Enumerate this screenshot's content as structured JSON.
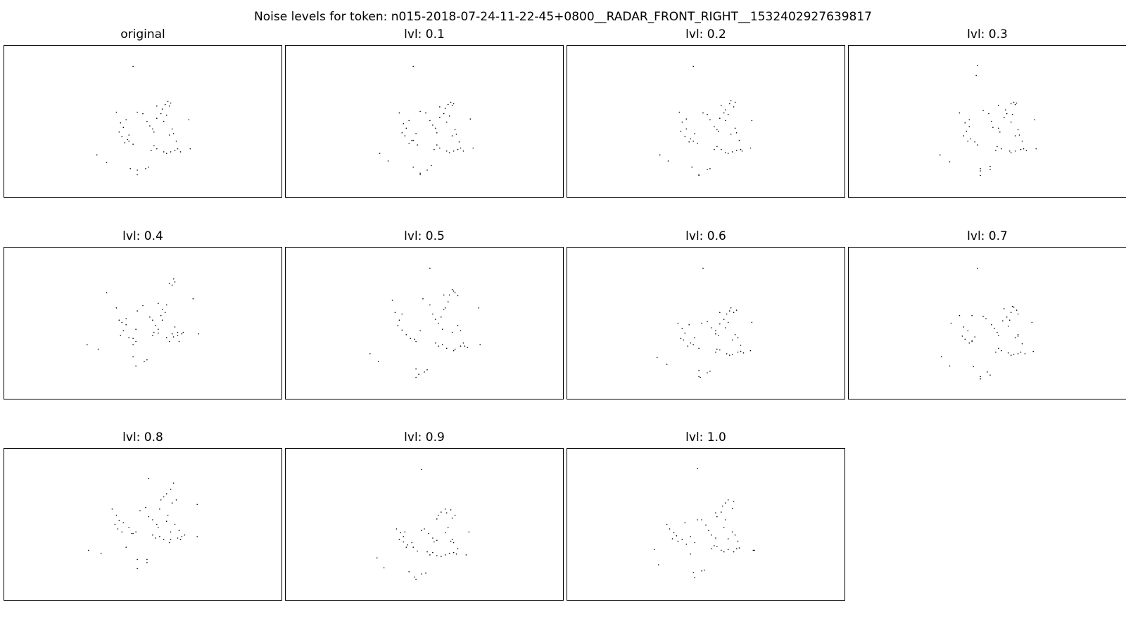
{
  "figure": {
    "title": "Noise levels for token: n015-2018-07-24-11-22-45+0800__RADAR_FRONT_RIGHT__1532402927639817",
    "point_color": "#000000",
    "background": "#ffffff"
  },
  "chart_data": [
    {
      "type": "scatter",
      "title": "original",
      "xlim": [
        0,
        100
      ],
      "ylim": [
        0,
        100
      ],
      "grid": false,
      "ticks": false,
      "x": [
        46.5,
        40.5,
        42.0,
        43.0,
        41.5,
        44.5,
        42.5,
        43.5,
        45.0,
        46.5,
        48.0,
        50.0,
        51.5,
        52.5,
        53.5,
        54.0,
        55.0,
        56.5,
        57.0,
        58.0,
        59.0,
        59.5,
        60.0,
        58.5,
        57.5,
        60.5,
        59.5,
        61.0,
        62.0,
        66.5,
        54.0,
        53.0,
        55.0,
        57.5,
        58.5,
        60.0,
        61.5,
        62.5,
        63.5,
        67.0,
        33.5,
        37.0,
        45.5,
        48.0,
        52.0,
        51.0,
        48.0,
        55.0,
        44.0,
        45.0
      ],
      "y": [
        86.0,
        56.0,
        49.0,
        46.0,
        43.0,
        38.0,
        40.0,
        36.0,
        37.0,
        35.0,
        56.0,
        55.0,
        50.0,
        47.0,
        45.0,
        43.0,
        52.0,
        55.0,
        58.0,
        61.0,
        63.0,
        60.0,
        62.0,
        54.0,
        50.0,
        45.0,
        41.0,
        42.0,
        37.0,
        51.0,
        34.0,
        31.0,
        32.0,
        30.0,
        29.0,
        30.0,
        31.0,
        32.0,
        30.0,
        32.0,
        28.0,
        23.0,
        19.0,
        18.0,
        20.0,
        19.0,
        15.0,
        60.0,
        51.0,
        41.0
      ]
    },
    {
      "type": "scatter",
      "title": "lvl: 0.1",
      "xlim": [
        0,
        100
      ],
      "ylim": [
        0,
        100
      ],
      "grid": false,
      "ticks": false,
      "x": [
        46.0,
        41.0,
        42.5,
        43.5,
        42.0,
        45.5,
        43.0,
        44.5,
        46.0,
        47.5,
        48.5,
        50.5,
        52.0,
        53.0,
        54.0,
        54.5,
        55.5,
        57.0,
        57.5,
        58.5,
        59.5,
        60.0,
        60.5,
        59.0,
        58.0,
        61.0,
        60.0,
        61.5,
        62.5,
        66.5,
        54.5,
        53.5,
        55.5,
        58.0,
        59.0,
        60.5,
        62.0,
        63.0,
        64.0,
        67.5,
        34.0,
        37.0,
        46.0,
        48.5,
        52.5,
        51.0,
        48.5,
        55.5,
        44.5,
        47.0
      ],
      "y": [
        86.0,
        55.5,
        48.5,
        45.5,
        42.5,
        37.5,
        40.5,
        35.5,
        37.5,
        34.5,
        56.5,
        55.5,
        50.5,
        47.5,
        45.5,
        42.5,
        52.5,
        55.0,
        58.5,
        61.0,
        62.5,
        60.5,
        61.5,
        53.5,
        49.5,
        44.5,
        40.5,
        41.5,
        36.5,
        51.5,
        34.5,
        31.5,
        32.5,
        30.5,
        29.5,
        30.5,
        31.5,
        32.5,
        30.5,
        32.5,
        29.0,
        24.0,
        20.0,
        16.0,
        21.0,
        18.0,
        15.0,
        59.5,
        50.5,
        42.0
      ]
    },
    {
      "type": "scatter",
      "title": "lvl: 0.2",
      "xlim": [
        0,
        100
      ],
      "ylim": [
        0,
        100
      ],
      "grid": false,
      "ticks": false,
      "x": [
        45.5,
        40.5,
        41.5,
        43.0,
        41.0,
        44.5,
        42.5,
        44.0,
        45.5,
        47.0,
        49.0,
        50.5,
        51.5,
        53.0,
        54.0,
        54.5,
        55.0,
        56.5,
        57.0,
        58.5,
        59.0,
        60.0,
        60.5,
        58.0,
        57.0,
        60.5,
        59.0,
        61.0,
        62.0,
        66.5,
        54.0,
        53.0,
        55.5,
        57.0,
        58.0,
        59.5,
        61.0,
        62.5,
        63.0,
        66.0,
        33.5,
        36.5,
        45.0,
        47.5,
        51.5,
        50.5,
        47.5,
        55.5,
        43.0,
        46.0
      ],
      "y": [
        86.0,
        56.0,
        49.5,
        45.0,
        43.5,
        38.5,
        40.0,
        36.5,
        37.0,
        35.5,
        55.5,
        54.5,
        51.0,
        46.5,
        44.5,
        43.5,
        52.0,
        55.5,
        57.5,
        61.5,
        63.5,
        59.5,
        62.5,
        54.5,
        50.5,
        45.5,
        41.5,
        42.5,
        37.5,
        50.5,
        33.5,
        31.5,
        31.5,
        29.5,
        29.0,
        30.0,
        31.0,
        31.5,
        30.5,
        32.5,
        28.0,
        24.0,
        20.0,
        15.0,
        19.0,
        18.5,
        14.5,
        60.5,
        51.5,
        42.0
      ]
    },
    {
      "type": "scatter",
      "title": "lvl: 0.3",
      "xlim": [
        0,
        100
      ],
      "ylim": [
        0,
        100
      ],
      "grid": false,
      "ticks": false,
      "x": [
        46.5,
        40.0,
        42.0,
        43.5,
        42.5,
        44.0,
        41.5,
        43.0,
        45.5,
        46.5,
        48.5,
        50.5,
        51.5,
        52.0,
        54.0,
        54.5,
        56.0,
        57.0,
        56.5,
        58.5,
        59.5,
        60.0,
        60.5,
        59.0,
        58.5,
        61.0,
        60.0,
        61.5,
        62.5,
        67.0,
        53.5,
        53.0,
        55.0,
        58.0,
        58.5,
        60.0,
        62.0,
        63.0,
        64.0,
        67.5,
        33.0,
        36.5,
        47.5,
        47.5,
        51.0,
        51.0,
        47.5,
        54.0,
        43.5,
        46.0
      ],
      "y": [
        86.5,
        55.5,
        49.0,
        46.5,
        43.5,
        38.5,
        40.5,
        37.0,
        36.5,
        34.5,
        57.0,
        55.0,
        50.0,
        46.0,
        45.5,
        43.0,
        52.5,
        55.0,
        57.5,
        61.5,
        62.5,
        61.0,
        62.0,
        54.5,
        49.5,
        44.5,
        40.5,
        41.0,
        37.0,
        51.0,
        33.5,
        31.0,
        32.0,
        30.5,
        29.5,
        30.5,
        31.5,
        32.0,
        31.0,
        32.0,
        28.0,
        23.5,
        19.0,
        17.5,
        20.5,
        18.5,
        14.5,
        60.5,
        51.0,
        80.0
      ]
    },
    {
      "type": "scatter",
      "title": "lvl: 0.4",
      "xlim": [
        0,
        100
      ],
      "ylim": [
        0,
        100
      ],
      "grid": false,
      "ticks": false,
      "x": [
        37.0,
        40.5,
        41.5,
        42.5,
        43.0,
        45.0,
        42.0,
        44.0,
        46.5,
        47.5,
        48.0,
        50.0,
        52.5,
        53.5,
        54.5,
        55.5,
        56.5,
        57.0,
        58.5,
        59.5,
        60.5,
        61.0,
        61.5,
        58.0,
        57.0,
        61.5,
        60.5,
        62.5,
        63.0,
        68.0,
        54.0,
        53.5,
        55.5,
        58.5,
        59.5,
        61.0,
        62.5,
        64.0,
        64.5,
        70.0,
        30.0,
        34.0,
        46.5,
        46.5,
        50.5,
        51.5,
        47.5,
        55.5,
        44.0,
        47.5
      ],
      "y": [
        70.0,
        60.0,
        52.0,
        50.5,
        45.0,
        40.5,
        42.0,
        49.0,
        40.0,
        38.0,
        58.0,
        61.5,
        54.0,
        52.0,
        48.5,
        46.0,
        55.0,
        59.0,
        62.0,
        76.0,
        75.0,
        79.0,
        77.0,
        57.0,
        52.0,
        47.5,
        43.0,
        44.0,
        38.0,
        66.0,
        44.0,
        42.0,
        43.5,
        40.5,
        38.0,
        41.0,
        42.0,
        43.0,
        44.0,
        43.0,
        36.0,
        33.0,
        36.0,
        28.0,
        25.0,
        26.0,
        22.0,
        63.0,
        53.0,
        46.0
      ]
    },
    {
      "type": "scatter",
      "title": "lvl: 0.5",
      "xlim": [
        0,
        100
      ],
      "ylim": [
        0,
        100
      ],
      "grid": false,
      "ticks": false,
      "x": [
        52.0,
        38.5,
        39.5,
        41.0,
        40.5,
        43.5,
        42.0,
        45.0,
        46.5,
        47.0,
        49.5,
        52.0,
        53.0,
        54.0,
        55.0,
        56.5,
        57.0,
        58.5,
        59.0,
        60.0,
        60.5,
        62.0,
        61.0,
        57.5,
        56.0,
        62.0,
        60.0,
        63.0,
        64.0,
        69.5,
        54.0,
        55.0,
        56.5,
        58.0,
        60.5,
        61.0,
        63.0,
        64.5,
        65.5,
        70.0,
        30.5,
        33.5,
        47.0,
        48.0,
        51.0,
        50.0,
        47.0,
        57.0,
        42.0,
        48.5
      ],
      "y": [
        86.0,
        65.0,
        57.0,
        52.0,
        48.5,
        42.5,
        45.5,
        40.0,
        39.5,
        38.0,
        66.0,
        62.0,
        56.0,
        52.5,
        50.0,
        46.0,
        59.0,
        64.0,
        68.5,
        72.0,
        71.0,
        68.0,
        70.0,
        60.0,
        54.0,
        48.5,
        44.0,
        45.0,
        37.0,
        60.0,
        37.0,
        35.0,
        36.0,
        33.5,
        32.0,
        33.0,
        35.0,
        35.0,
        34.0,
        36.0,
        30.0,
        25.0,
        20.0,
        16.5,
        19.5,
        18.0,
        14.5,
        68.5,
        56.0,
        45.0
      ]
    },
    {
      "type": "scatter",
      "title": "lvl: 0.6",
      "xlim": [
        0,
        100
      ],
      "ylim": [
        0,
        100
      ],
      "grid": false,
      "ticks": false,
      "x": [
        49.0,
        40.0,
        41.5,
        42.5,
        41.0,
        44.5,
        42.0,
        43.5,
        45.5,
        47.5,
        48.5,
        50.5,
        52.0,
        53.5,
        53.5,
        54.5,
        55.0,
        56.5,
        57.5,
        58.5,
        59.0,
        60.0,
        61.0,
        58.0,
        57.0,
        60.5,
        59.5,
        61.5,
        62.5,
        66.5,
        54.0,
        53.5,
        55.0,
        57.5,
        58.5,
        59.5,
        61.5,
        62.5,
        63.5,
        66.0,
        32.5,
        36.0,
        47.5,
        48.0,
        51.5,
        50.5,
        47.5,
        55.0,
        44.0,
        46.0
      ],
      "y": [
        86.0,
        50.0,
        46.5,
        43.5,
        40.0,
        37.0,
        39.0,
        35.0,
        36.0,
        33.5,
        50.0,
        51.0,
        47.0,
        45.0,
        43.0,
        42.0,
        49.5,
        52.5,
        56.0,
        58.0,
        60.0,
        57.0,
        58.5,
        50.5,
        47.0,
        42.5,
        39.0,
        40.5,
        35.5,
        50.5,
        33.0,
        31.0,
        32.5,
        30.0,
        29.0,
        29.5,
        31.0,
        31.5,
        30.5,
        32.0,
        27.5,
        23.0,
        19.0,
        14.5,
        18.5,
        17.5,
        15.0,
        57.0,
        49.0,
        40.5
      ]
    },
    {
      "type": "scatter",
      "title": "lvl: 0.7",
      "xlim": [
        0,
        100
      ],
      "ylim": [
        0,
        100
      ],
      "grid": false,
      "ticks": false,
      "x": [
        46.5,
        40.0,
        41.5,
        43.0,
        41.0,
        44.5,
        42.0,
        43.5,
        44.5,
        45.5,
        48.5,
        49.5,
        51.5,
        52.5,
        53.5,
        54.0,
        55.5,
        57.0,
        58.5,
        59.0,
        59.5,
        60.5,
        61.0,
        58.0,
        57.5,
        61.0,
        60.0,
        61.0,
        62.5,
        66.0,
        54.0,
        53.0,
        55.0,
        57.5,
        58.5,
        59.5,
        61.0,
        62.0,
        63.5,
        66.5,
        33.5,
        36.5,
        45.0,
        47.5,
        51.0,
        50.0,
        47.5,
        56.0,
        37.0,
        44.5
      ],
      "y": [
        86.0,
        55.0,
        47.5,
        45.0,
        41.5,
        38.0,
        39.5,
        37.0,
        38.5,
        41.0,
        54.5,
        53.0,
        49.0,
        46.5,
        44.0,
        42.0,
        51.5,
        54.0,
        57.0,
        61.0,
        60.5,
        58.5,
        56.0,
        52.0,
        48.0,
        42.5,
        40.5,
        41.5,
        36.5,
        50.5,
        33.5,
        31.0,
        32.0,
        30.5,
        29.0,
        29.5,
        30.0,
        31.0,
        30.0,
        31.5,
        28.0,
        22.0,
        21.5,
        15.0,
        16.0,
        18.0,
        13.5,
        59.5,
        50.0,
        55.0
      ]
    },
    {
      "type": "scatter",
      "title": "lvl: 0.8",
      "xlim": [
        0,
        100
      ],
      "ylim": [
        0,
        100
      ],
      "grid": false,
      "ticks": false,
      "x": [
        52.0,
        39.0,
        40.5,
        41.5,
        40.0,
        42.5,
        41.0,
        45.0,
        46.0,
        47.5,
        49.0,
        51.0,
        52.0,
        53.5,
        55.0,
        55.5,
        56.5,
        57.5,
        58.5,
        60.0,
        61.0,
        60.5,
        62.0,
        59.0,
        58.5,
        61.5,
        60.0,
        63.0,
        63.5,
        69.5,
        53.5,
        54.5,
        56.0,
        57.5,
        59.5,
        60.0,
        62.5,
        64.0,
        65.0,
        69.5,
        30.5,
        35.0,
        44.0,
        48.0,
        51.5,
        51.5,
        48.0,
        56.0,
        43.0,
        46.5
      ],
      "y": [
        80.0,
        60.0,
        56.0,
        52.5,
        50.0,
        45.0,
        47.0,
        48.0,
        44.0,
        45.0,
        59.0,
        61.0,
        55.0,
        53.0,
        50.0,
        48.0,
        66.0,
        68.0,
        70.0,
        73.0,
        77.0,
        64.0,
        66.0,
        56.0,
        52.0,
        50.0,
        45.0,
        46.0,
        40.0,
        63.0,
        43.0,
        41.0,
        42.0,
        40.0,
        38.0,
        40.0,
        41.0,
        42.0,
        43.0,
        42.0,
        33.0,
        31.0,
        35.0,
        27.0,
        25.0,
        27.0,
        21.0,
        60.0,
        51.0,
        44.0
      ]
    },
    {
      "type": "scatter",
      "title": "lvl: 0.9",
      "xlim": [
        0,
        100
      ],
      "ylim": [
        0,
        100
      ],
      "grid": false,
      "ticks": false,
      "x": [
        49.0,
        40.0,
        41.5,
        42.5,
        41.0,
        44.0,
        42.5,
        43.5,
        46.0,
        47.5,
        49.0,
        50.0,
        51.5,
        53.0,
        54.5,
        53.5,
        55.0,
        56.0,
        57.5,
        58.0,
        59.5,
        60.0,
        61.0,
        58.5,
        57.5,
        60.0,
        60.5,
        59.5,
        62.0,
        66.0,
        51.0,
        52.0,
        53.0,
        54.5,
        56.0,
        57.5,
        59.0,
        60.5,
        61.5,
        65.0,
        33.0,
        35.5,
        44.5,
        46.5,
        50.5,
        49.0,
        47.0,
        54.5,
        43.0,
        45.5
      ],
      "y": [
        86.0,
        47.0,
        44.5,
        42.0,
        40.0,
        36.5,
        38.5,
        35.0,
        35.0,
        32.5,
        46.0,
        47.0,
        44.0,
        41.0,
        39.5,
        38.5,
        56.0,
        58.0,
        60.0,
        57.5,
        59.5,
        54.0,
        56.0,
        48.0,
        44.5,
        40.0,
        38.0,
        39.0,
        34.0,
        45.0,
        32.0,
        30.0,
        31.5,
        29.5,
        29.0,
        30.0,
        31.0,
        31.5,
        30.5,
        30.0,
        28.0,
        21.5,
        19.0,
        15.5,
        18.0,
        17.5,
        14.0,
        53.5,
        45.0,
        38.0
      ]
    },
    {
      "type": "scatter",
      "title": "lvl: 1.0",
      "xlim": [
        0,
        100
      ],
      "ylim": [
        0,
        100
      ],
      "grid": false,
      "ticks": false,
      "x": [
        47.0,
        36.0,
        37.0,
        38.5,
        39.5,
        40.0,
        38.0,
        41.5,
        43.0,
        46.0,
        47.0,
        48.5,
        50.0,
        51.0,
        52.0,
        53.5,
        54.0,
        55.5,
        56.0,
        57.0,
        58.0,
        59.5,
        60.0,
        57.0,
        56.5,
        59.5,
        58.0,
        60.5,
        61.5,
        67.0,
        53.0,
        52.0,
        54.0,
        55.5,
        56.5,
        58.0,
        60.0,
        61.0,
        62.0,
        67.5,
        31.5,
        33.0,
        44.5,
        45.5,
        49.5,
        48.5,
        46.0,
        53.5,
        42.5,
        44.5
      ],
      "y": [
        86.5,
        50.0,
        47.0,
        44.5,
        42.5,
        39.0,
        40.5,
        40.0,
        37.0,
        38.0,
        53.0,
        53.0,
        49.5,
        46.0,
        43.0,
        41.0,
        55.0,
        58.0,
        62.0,
        64.0,
        66.0,
        60.5,
        65.0,
        53.0,
        48.0,
        45.0,
        40.5,
        43.0,
        39.0,
        33.0,
        36.0,
        34.0,
        35.5,
        33.0,
        32.0,
        33.5,
        32.0,
        34.0,
        34.5,
        33.0,
        33.5,
        23.5,
        30.5,
        18.5,
        20.0,
        19.5,
        15.0,
        57.5,
        51.0,
        42.0
      ]
    }
  ]
}
